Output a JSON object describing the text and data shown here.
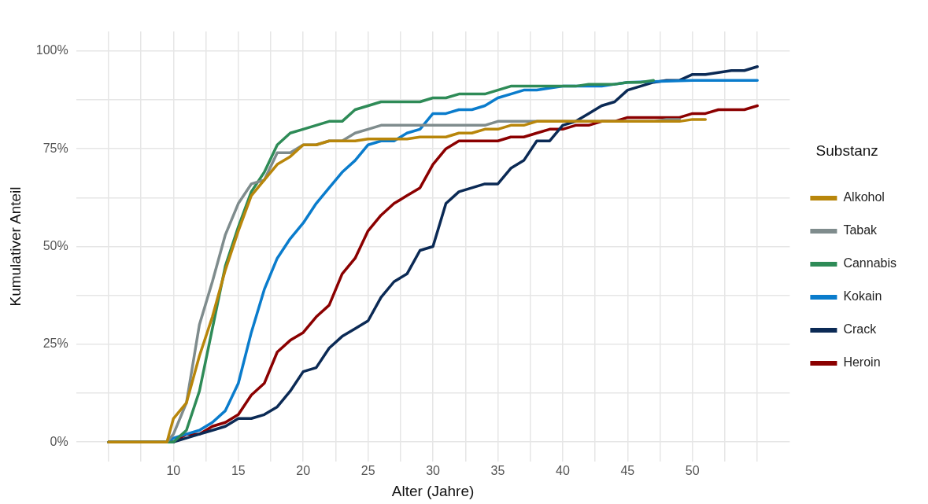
{
  "chart_data": {
    "type": "line",
    "xlabel": "Alter (Jahre)",
    "ylabel": "Kumulativer Anteil",
    "legend_title": "Substanz",
    "legend": "right",
    "grid": true,
    "marker": "none",
    "line_style": "solid",
    "xlim": [
      2.5,
      57.5
    ],
    "ylim": [
      -5,
      105
    ],
    "xticks": [
      {
        "value": 5,
        "label": null
      },
      {
        "value": 7.5,
        "label": null
      },
      10,
      {
        "value": 12.5,
        "label": null
      },
      15,
      {
        "value": 17.5,
        "label": null
      },
      20,
      {
        "value": 22.5,
        "label": null
      },
      25,
      {
        "value": 27.5,
        "label": null
      },
      30,
      {
        "value": 32.5,
        "label": null
      },
      35,
      {
        "value": 37.5,
        "label": null
      },
      40,
      {
        "value": 42.5,
        "label": null
      },
      45,
      {
        "value": 47.5,
        "label": null
      },
      50,
      {
        "value": 52.5,
        "label": null
      },
      {
        "value": 55,
        "label": null
      }
    ],
    "yticks": [
      {
        "value": 0,
        "label": "0%"
      },
      {
        "value": 12.5,
        "label": null
      },
      {
        "value": 25,
        "label": "25%"
      },
      {
        "value": 37.5,
        "label": null
      },
      {
        "value": 50,
        "label": "50%"
      },
      {
        "value": 62.5,
        "label": null
      },
      {
        "value": 75,
        "label": "75%"
      },
      {
        "value": 87.5,
        "label": null
      },
      {
        "value": 100,
        "label": "100%"
      }
    ],
    "series": [
      {
        "name": "Alkohol",
        "color": "#b8860b",
        "x": [
          5,
          9.5,
          10,
          11,
          12,
          13,
          14,
          15,
          16,
          17,
          18,
          19,
          20,
          21,
          22,
          23,
          24,
          25,
          26,
          27,
          28,
          29,
          30,
          31,
          32,
          33,
          34,
          35,
          36,
          37,
          38,
          40,
          45,
          48,
          49,
          50,
          51
        ],
        "values": [
          0,
          0,
          6,
          10,
          22,
          32,
          44,
          54,
          63,
          67,
          71,
          73,
          76,
          76,
          77,
          77,
          77,
          77.5,
          77.5,
          77.5,
          77.5,
          78,
          78,
          78,
          79,
          79,
          80,
          80,
          81,
          81,
          82,
          82,
          82,
          82,
          82,
          82.5,
          82.5
        ]
      },
      {
        "name": "Tabak",
        "color": "#7f8c8d",
        "x": [
          5,
          9.5,
          10,
          11,
          12,
          13,
          14,
          15,
          16,
          17,
          18,
          19,
          20,
          21,
          22,
          23,
          24,
          25,
          26,
          30,
          34,
          35,
          40,
          45,
          47,
          48,
          49
        ],
        "values": [
          0,
          0,
          2,
          10,
          30,
          41,
          53,
          61,
          66,
          67,
          74,
          74,
          76,
          76,
          77,
          77,
          79,
          80,
          81,
          81,
          81,
          82,
          82,
          82,
          82,
          82.5,
          82.5
        ]
      },
      {
        "name": "Cannabis",
        "color": "#2e8b57",
        "x": [
          5,
          10,
          11,
          12,
          13,
          14,
          15,
          16,
          17,
          18,
          19,
          20,
          21,
          22,
          23,
          24,
          25,
          26,
          27,
          28,
          29,
          30,
          31,
          32,
          33,
          34,
          35,
          36,
          40,
          41,
          42,
          44,
          45,
          46,
          47
        ],
        "values": [
          0,
          0,
          3,
          13,
          29,
          45,
          55,
          64,
          69,
          76,
          79,
          80,
          81,
          82,
          82,
          85,
          86,
          87,
          87,
          87,
          87,
          88,
          88,
          89,
          89,
          89,
          90,
          91,
          91,
          91,
          91.5,
          91.5,
          92,
          92,
          92.5
        ]
      },
      {
        "name": "Kokain",
        "color": "#0a7ccc",
        "x": [
          5,
          9.5,
          10,
          11,
          12,
          13,
          14,
          15,
          16,
          17,
          18,
          19,
          20,
          21,
          22,
          23,
          24,
          25,
          26,
          27,
          28,
          29,
          30,
          31,
          32,
          33,
          34,
          35,
          36,
          37,
          38,
          39,
          40,
          41,
          42,
          43,
          44,
          45,
          50,
          55
        ],
        "values": [
          0,
          0,
          1,
          2,
          3,
          5,
          8,
          15,
          28,
          39,
          47,
          52,
          56,
          61,
          65,
          69,
          72,
          76,
          77,
          77,
          79,
          80,
          84,
          84,
          85,
          85,
          86,
          88,
          89,
          90,
          90,
          90.5,
          91,
          91,
          91,
          91,
          91.5,
          92,
          92.5,
          92.5
        ]
      },
      {
        "name": "Crack",
        "color": "#0b2a55",
        "x": [
          5,
          10,
          11,
          12,
          13,
          14,
          15,
          16,
          17,
          18,
          19,
          20,
          21,
          22,
          23,
          24,
          25,
          26,
          27,
          28,
          29,
          30,
          31,
          32,
          33,
          34,
          35,
          36,
          37,
          38,
          39,
          40,
          41,
          42,
          43,
          44,
          45,
          46,
          47,
          48,
          49,
          50,
          51,
          52,
          53,
          54,
          55
        ],
        "values": [
          0,
          0,
          1,
          2,
          3,
          4,
          6,
          6,
          7,
          9,
          13,
          18,
          19,
          24,
          27,
          29,
          31,
          37,
          41,
          43,
          49,
          50,
          61,
          64,
          65,
          66,
          66,
          70,
          72,
          77,
          77,
          81,
          82,
          84,
          86,
          87,
          90,
          91,
          92,
          92.5,
          92.5,
          94,
          94,
          94.5,
          95,
          95,
          96
        ]
      },
      {
        "name": "Heroin",
        "color": "#8b0000",
        "x": [
          5,
          10,
          11,
          12,
          13,
          14,
          15,
          16,
          17,
          18,
          19,
          20,
          21,
          22,
          23,
          24,
          25,
          26,
          27,
          28,
          29,
          30,
          31,
          32,
          33,
          34,
          35,
          36,
          37,
          38,
          39,
          40,
          41,
          42,
          43,
          44,
          45,
          46,
          49,
          50,
          51,
          52,
          53,
          54,
          55
        ],
        "values": [
          0,
          0,
          2,
          2,
          4,
          5,
          7,
          12,
          15,
          23,
          26,
          28,
          32,
          35,
          43,
          47,
          54,
          58,
          61,
          63,
          65,
          71,
          75,
          77,
          77,
          77,
          77,
          78,
          78,
          79,
          80,
          80,
          81,
          81,
          82,
          82,
          83,
          83,
          83,
          84,
          84,
          85,
          85,
          85,
          86
        ]
      }
    ]
  }
}
